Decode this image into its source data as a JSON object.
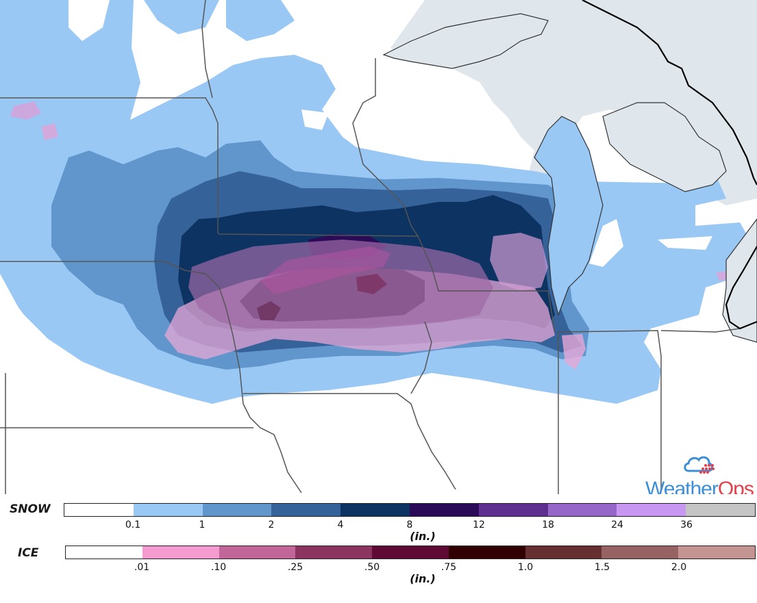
{
  "legend": {
    "snow": {
      "title": "SNOW",
      "unit": "(in.)",
      "ticks": [
        "0.1",
        "1",
        "2",
        "4",
        "8",
        "12",
        "18",
        "24",
        "36"
      ],
      "colors": [
        "#ffffff",
        "#99c8f5",
        "#6196cc",
        "#36629a",
        "#0d3363",
        "#2b0b58",
        "#5e2f8f",
        "#9667c9",
        "#c797f2",
        "#c4c4c4"
      ]
    },
    "ice": {
      "title": "ICE",
      "unit": "(in.)",
      "ticks": [
        ".01",
        ".10",
        ".25",
        ".50",
        ".75",
        "1.0",
        "1.5",
        "2.0"
      ],
      "colors": [
        "#ffffff",
        "#f59bcf",
        "#c2669a",
        "#8c3460",
        "#5e0a35",
        "#300003",
        "#663033",
        "#966263",
        "#c49493"
      ]
    }
  },
  "logo": {
    "brand_part1": "Weather",
    "brand_part2": "Ops",
    "colors": {
      "primary": "#3c8fd6",
      "accent": "#e2414e"
    }
  }
}
